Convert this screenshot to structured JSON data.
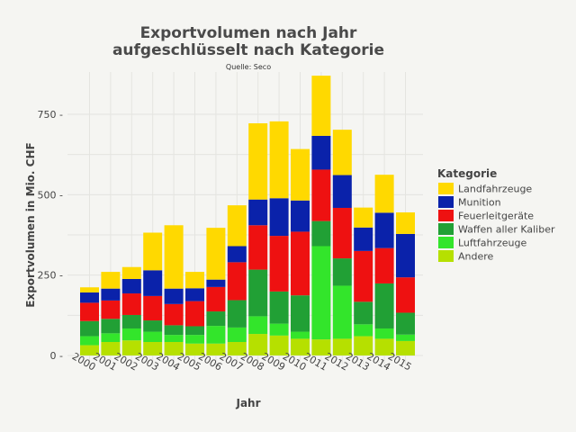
{
  "chart_data": {
    "type": "bar",
    "stacked": true,
    "title_line1": "Exportvolumen nach Jahr",
    "title_line2": "aufgeschlüsselt nach Kategorie",
    "subtitle": "Quelle: Seco",
    "xlabel": "Jahr",
    "ylabel": "Exportvolumen in Mio. CHF",
    "ylim": [
      0,
      870
    ],
    "yticks": [
      0,
      250,
      500,
      750
    ],
    "ytick_labels": [
      "0 -",
      "250 -",
      "500 -",
      "750 -"
    ],
    "categories": [
      "2000",
      "2001",
      "2002",
      "2003",
      "2004",
      "2005",
      "2006",
      "2007",
      "2008",
      "2009",
      "2010",
      "2011",
      "2012",
      "2013",
      "2014",
      "2015"
    ],
    "legend_title": "Kategorie",
    "legend_position": "right",
    "series": [
      {
        "name": "Andere",
        "color": "#b6e000",
        "values": [
          32,
          42,
          47,
          42,
          42,
          37,
          37,
          42,
          67,
          62,
          52,
          50,
          52,
          60,
          52,
          45
        ]
      },
      {
        "name": "Luftfahrzeuge",
        "color": "#33e52b",
        "values": [
          28,
          27,
          37,
          32,
          22,
          27,
          55,
          45,
          55,
          37,
          22,
          290,
          165,
          37,
          32,
          20
        ]
      },
      {
        "name": "Waffen aller Kaliber",
        "color": "#21a035",
        "values": [
          47,
          45,
          42,
          35,
          30,
          27,
          45,
          85,
          145,
          100,
          113,
          78,
          85,
          70,
          140,
          68
        ]
      },
      {
        "name": "Feuerleitgeräte",
        "color": "#ee1111",
        "values": [
          57,
          57,
          67,
          76,
          66,
          78,
          76,
          118,
          138,
          173,
          198,
          160,
          157,
          158,
          110,
          110
        ]
      },
      {
        "name": "Munition",
        "color": "#0a22aa",
        "values": [
          32,
          37,
          45,
          80,
          48,
          40,
          23,
          50,
          80,
          117,
          97,
          105,
          102,
          73,
          110,
          135
        ]
      },
      {
        "name": "Landfahrzeuge",
        "color": "#ffd900",
        "values": [
          16,
          52,
          37,
          117,
          197,
          51,
          161,
          127,
          237,
          239,
          160,
          187,
          141,
          62,
          118,
          67
        ]
      }
    ],
    "legend_order": [
      "Landfahrzeuge",
      "Munition",
      "Feuerleitgeräte",
      "Waffen aller Kaliber",
      "Luftfahrzeuge",
      "Andere"
    ]
  }
}
